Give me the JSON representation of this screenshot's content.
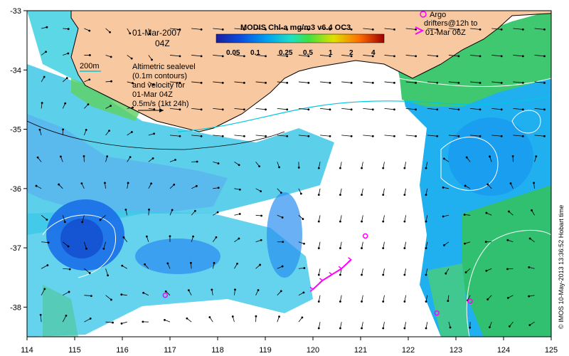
{
  "map": {
    "date_label": "01-Mar-2007",
    "time_label": "04Z",
    "bathy_label": "200m",
    "legend_lines": [
      "Altimetric sealevel",
      "(0.1m contours)",
      "and velocity for",
      "01-Mar 04Z",
      "0.5m/s (1kt 24h)"
    ],
    "colorbar": {
      "title": "MODIS Chl-a mg/m3 v6.4 OC3",
      "ticks": [
        "0.05",
        "0.1",
        "0.25",
        "0.5",
        "1",
        "2",
        "4"
      ]
    },
    "argo": {
      "lines": [
        "Argo",
        "drifters@12h to",
        "01-Mar 06Z"
      ],
      "floats": [
        {
          "lon": 121.1,
          "lat": -36.8
        },
        {
          "lon": 122.6,
          "lat": -38.1
        },
        {
          "lon": 123.3,
          "lat": -37.9
        },
        {
          "lon": 116.9,
          "lat": -37.8
        }
      ],
      "track": [
        {
          "lon": 120.0,
          "lat": -37.7
        },
        {
          "lon": 120.2,
          "lat": -37.55
        },
        {
          "lon": 120.4,
          "lat": -37.45
        },
        {
          "lon": 120.6,
          "lat": -37.35
        },
        {
          "lon": 120.8,
          "lat": -37.2
        }
      ]
    },
    "credit": "© IMOS 10-May-2013 13:36:52 Hobart time",
    "x_ticks": [
      114,
      115,
      116,
      117,
      118,
      119,
      120,
      121,
      122,
      123,
      124,
      125
    ],
    "y_ticks": [
      -33,
      -34,
      -35,
      -36,
      -37,
      -38
    ],
    "lon_range": [
      114,
      125
    ],
    "lat_range": [
      -38.5,
      -33
    ],
    "colors": {
      "land": "#f8c8a0",
      "coast": "#000000",
      "sealevel_contour": "#ffffff",
      "current_line": "#00c8e0",
      "argo": "#ff00ff"
    }
  }
}
